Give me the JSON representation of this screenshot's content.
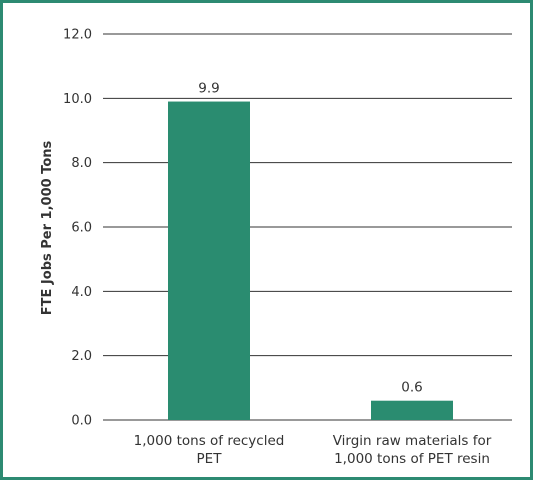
{
  "chart_data": {
    "type": "bar",
    "title": "",
    "xlabel": "",
    "ylabel": "FTE Jobs Per 1,000 Tons",
    "ylim": [
      0,
      12
    ],
    "yticks": [
      "0.0",
      "2.0",
      "4.0",
      "6.0",
      "8.0",
      "10.0",
      "12.0"
    ],
    "grid": true,
    "categories": [
      [
        "1,000 tons of recycled",
        "PET"
      ],
      [
        "Virgin raw materials for",
        "1,000 tons of PET resin"
      ]
    ],
    "values": [
      9.9,
      0.6
    ],
    "data_labels": [
      "9.9",
      "0.6"
    ],
    "colors": {
      "bar": "#2a8c70",
      "grid": "#333333",
      "border": "#2d8a72"
    }
  }
}
